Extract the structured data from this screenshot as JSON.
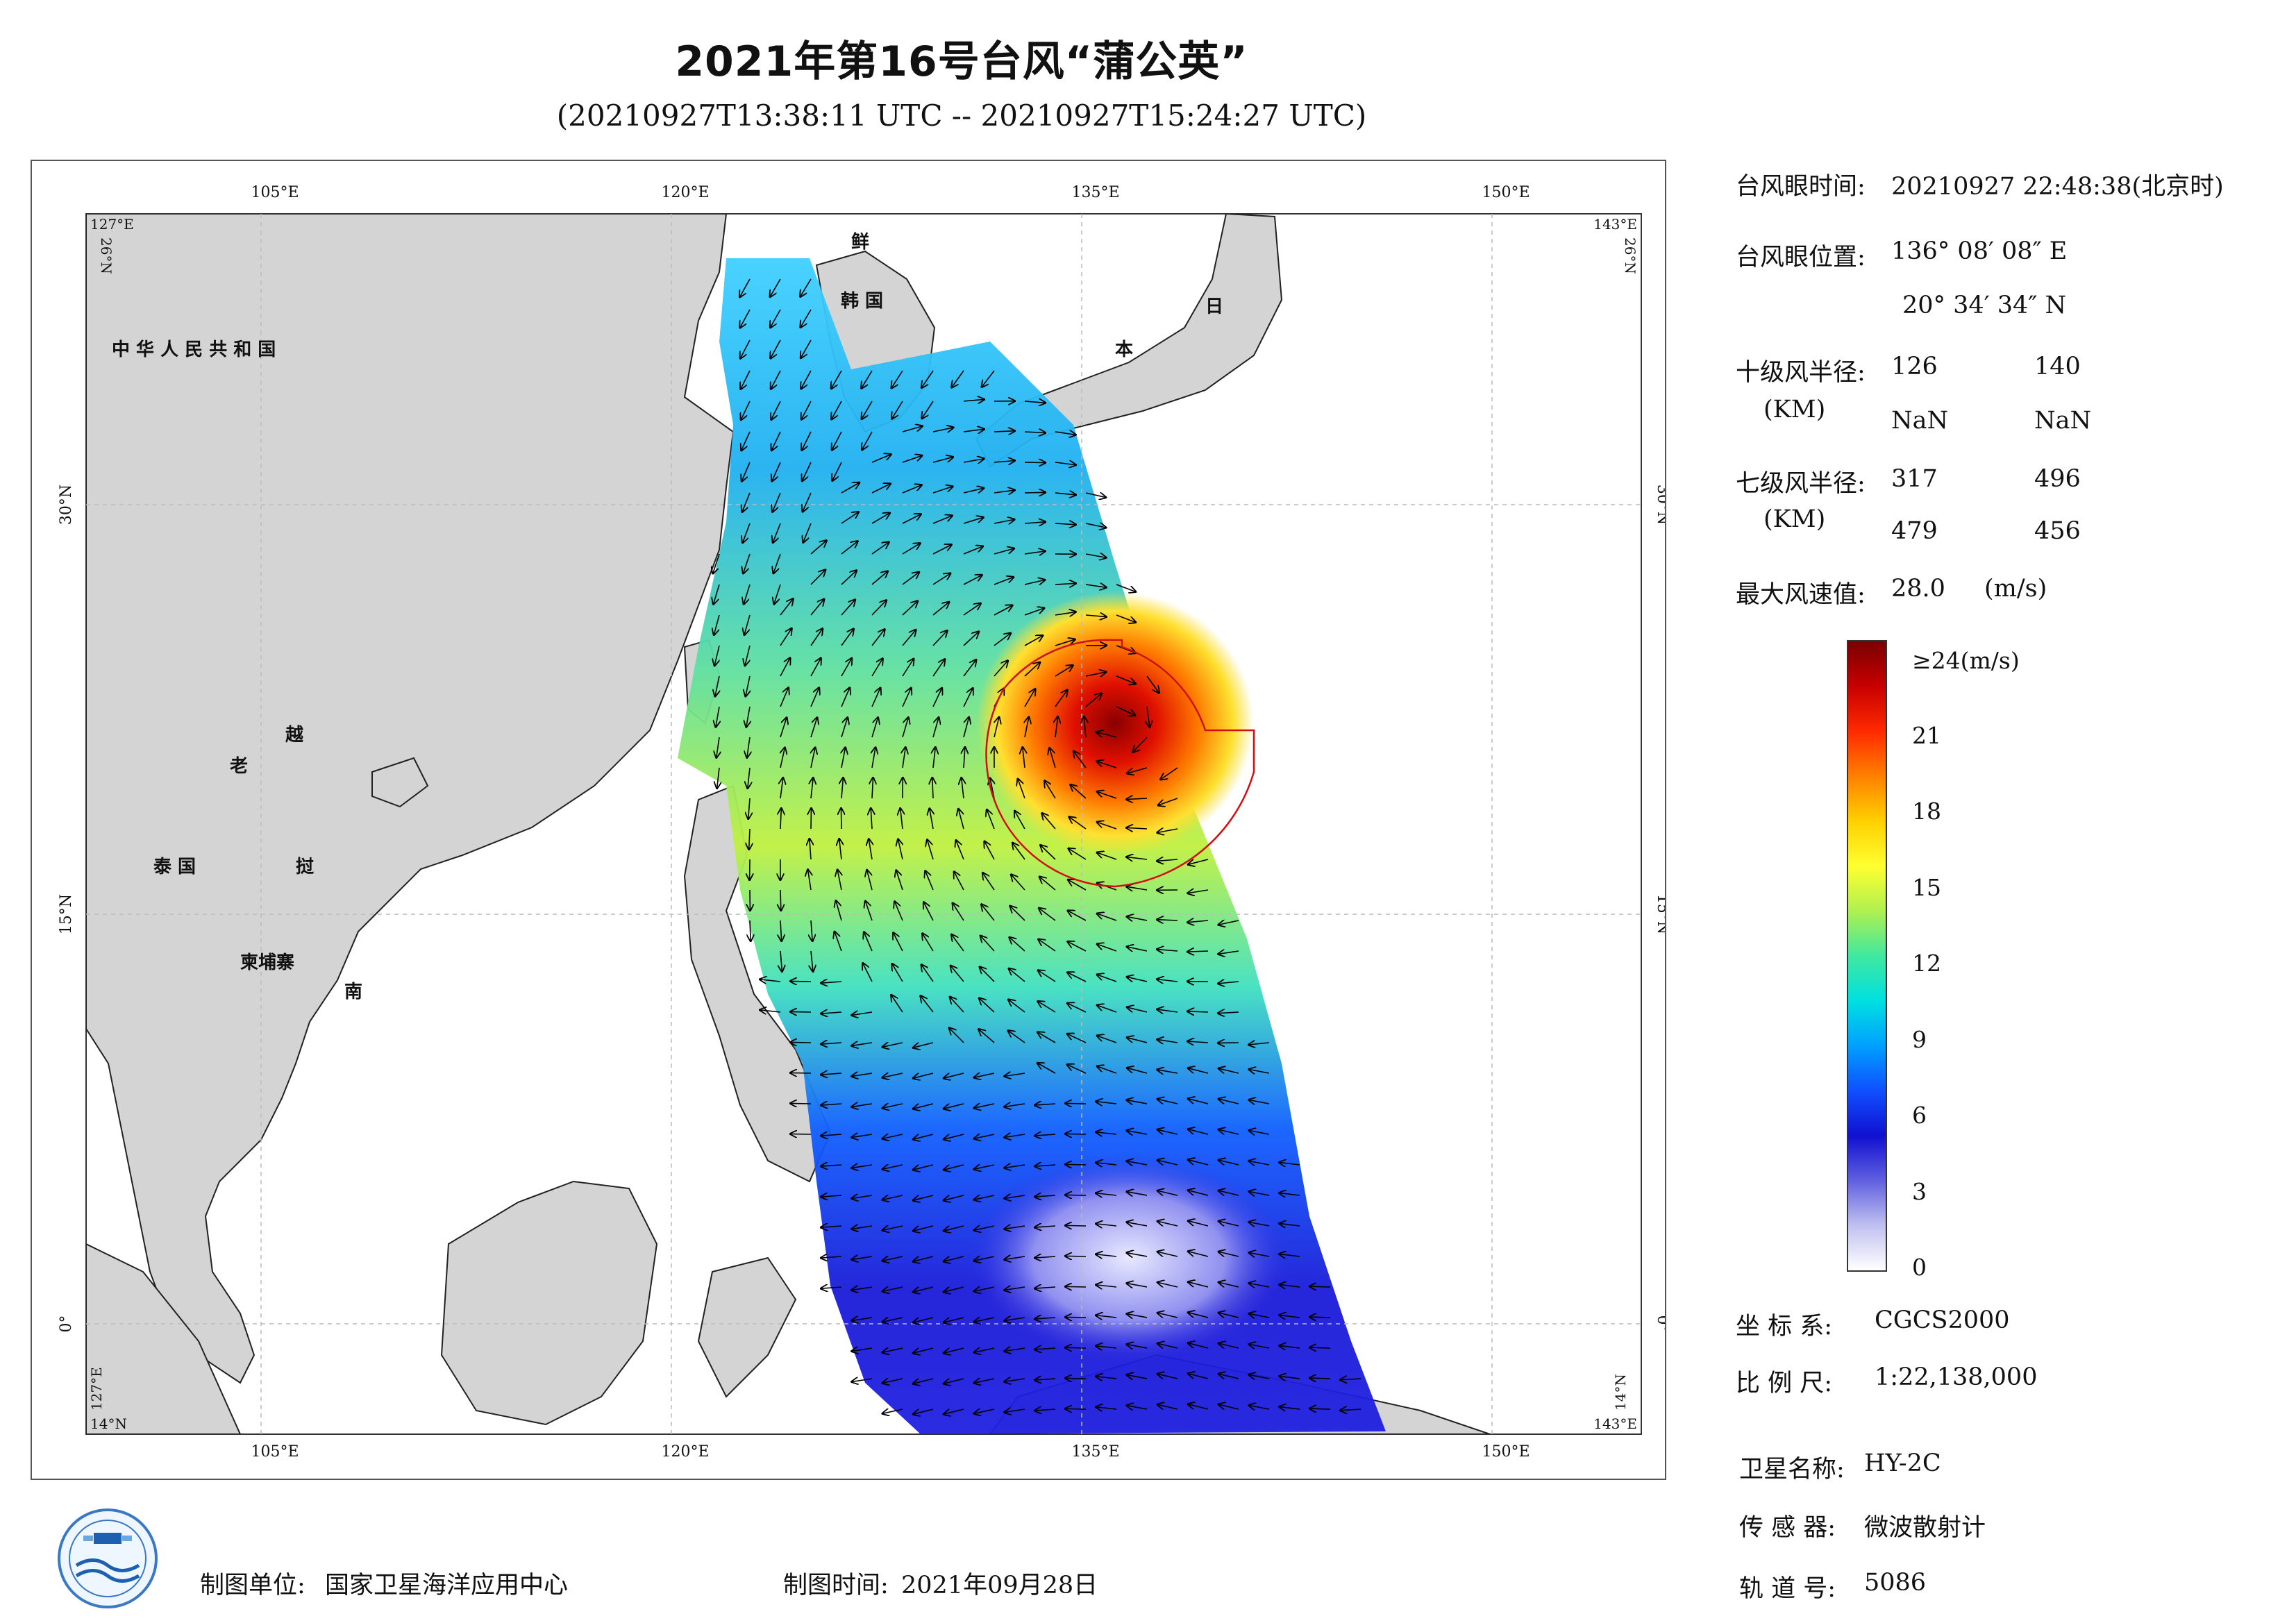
{
  "title": "2021年第16号台风“蒲公英”",
  "subtitle": "(20210927T13:38:11 UTC -- 20210927T15:24:27 UTC)",
  "map": {
    "lon_ticks_top": [
      "105°E",
      "120°E",
      "135°E",
      "150°E"
    ],
    "lon_ticks_bottom": [
      "105°E",
      "120°E",
      "135°E",
      "150°E"
    ],
    "lat_ticks_left": [
      "30°N",
      "15°N",
      "0°"
    ],
    "lat_ticks_right": [
      "30°N",
      "15°N",
      "0°"
    ],
    "corner_top_left_lon": "127°E",
    "corner_top_left_lat": "26°N",
    "corner_top_right_lon": "143°E",
    "corner_top_right_lat": "26°N",
    "corner_bottom_left_lon": "127°E",
    "corner_bottom_left_lat": "14°N",
    "corner_bottom_right_lon": "143°E",
    "corner_bottom_right_lat": "14°N",
    "labels": {
      "china": "中 华 人 民 共 和 国",
      "korea_1": "鲜",
      "korea_2": "韩  国",
      "japan_1": "日",
      "japan_2": "本",
      "laos": "老",
      "vietnam_1": "越",
      "thailand": "泰  国",
      "vietnam_2": "挝",
      "cambodia": "柬埔寨",
      "vietnam_3": "南"
    },
    "typhoon_eye": {
      "lon": 136.136,
      "lat": 20.576
    },
    "colors": {
      "land": "#d4d4d4",
      "coast": "#222222",
      "circle": "#d01010"
    }
  },
  "info": {
    "eye_time_label": "台风眼时间:",
    "eye_time_value": "20210927  22:48:38(北京时)",
    "eye_pos_label": "台风眼位置:",
    "eye_pos_lon": "136° 08′ 08″ E",
    "eye_pos_lat": "20° 34′ 34″ N",
    "r10_label": "十级风半径:",
    "r10_unit": "(KM)",
    "r10_values": [
      "126",
      "140",
      "NaN",
      "NaN"
    ],
    "r7_label": "七级风半径:",
    "r7_unit": "(KM)",
    "r7_values": [
      "317",
      "496",
      "479",
      "456"
    ],
    "max_wind_label": "最大风速值:",
    "max_wind_value": "28.0",
    "max_wind_unit": "(m/s)"
  },
  "colorbar": {
    "top_label": "≥24(m/s)",
    "ticks": [
      "21",
      "18",
      "15",
      "12",
      "9",
      "6",
      "3",
      "0"
    ],
    "stops": [
      "#7a0000",
      "#c80000",
      "#ff2a00",
      "#ff8000",
      "#ffd000",
      "#ffff30",
      "#b0f050",
      "#40e8a0",
      "#00e0e0",
      "#00a0ff",
      "#1050ff",
      "#1010d0",
      "#6060e0",
      "#c0c0f0",
      "#ffffff"
    ]
  },
  "meta": {
    "crs_label": "坐 标 系:",
    "crs_value": "CGCS2000",
    "scale_label": "比 例 尺:",
    "scale_value": "1:22,138,000",
    "satellite_label": "卫星名称:",
    "satellite_value": "HY-2C",
    "sensor_label": "传 感 器:",
    "sensor_value": "微波散射计",
    "orbit_label": "轨 道 号:",
    "orbit_value": "5086"
  },
  "footer": {
    "producer_label": "制图单位:",
    "producer_value": "国家卫星海洋应用中心",
    "date_label": "制图时间:",
    "date_value": "2021年09月28日"
  }
}
